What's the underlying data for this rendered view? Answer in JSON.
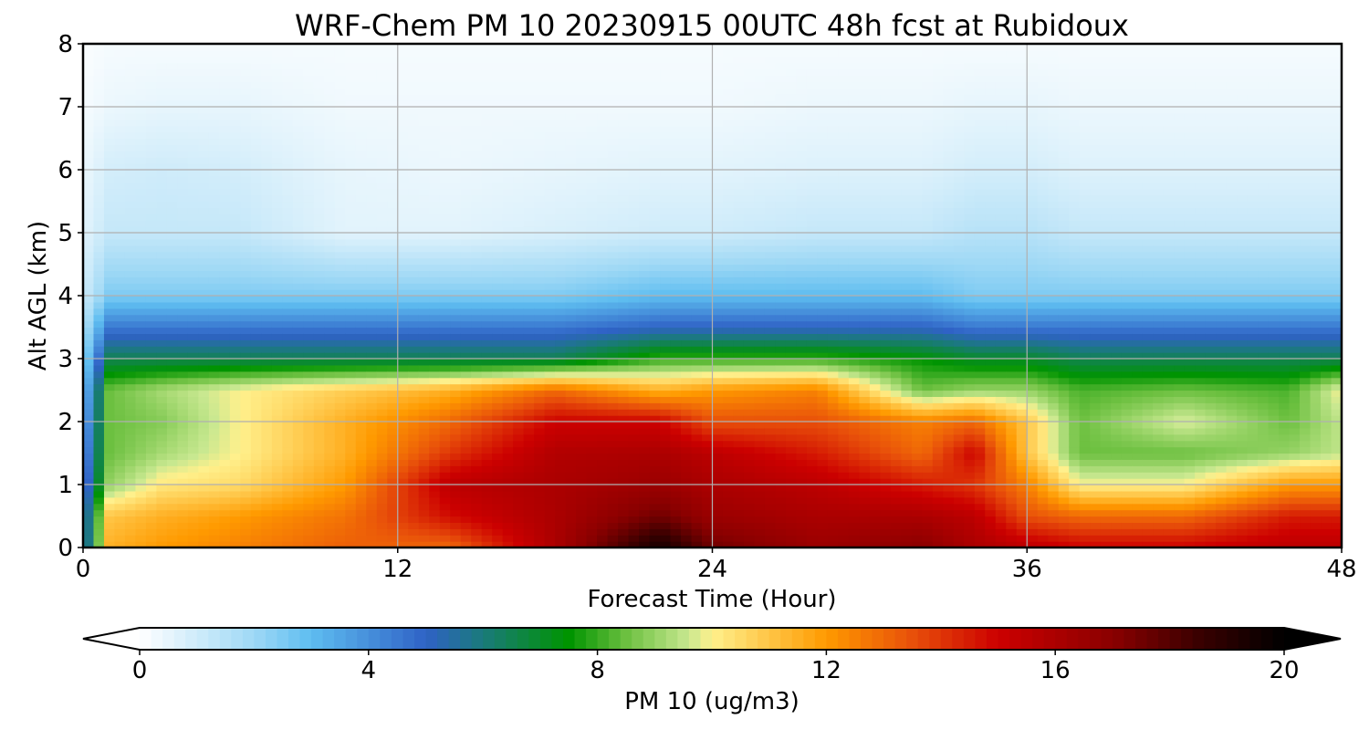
{
  "chart_data": {
    "type": "heatmap",
    "title": "WRF-Chem PM 10  20230915 00UTC 48h fcst at Rubidoux",
    "xlabel": "Forecast Time (Hour)",
    "ylabel": "Alt AGL (km)",
    "xlim": [
      0,
      48
    ],
    "ylim": [
      0,
      8
    ],
    "x_ticks": [
      0,
      12,
      24,
      36,
      48
    ],
    "y_ticks": [
      0,
      1,
      2,
      3,
      4,
      5,
      6,
      7,
      8
    ],
    "grid": true,
    "colorbar": {
      "label": "PM 10  (ug/m3)",
      "min": 0,
      "max": 20,
      "ticks": [
        0,
        4,
        8,
        12,
        16,
        20
      ],
      "extend": "both",
      "colors": [
        {
          "v": 0,
          "c": "#ffffff"
        },
        {
          "v": 2,
          "c": "#9ed8f5"
        },
        {
          "v": 3,
          "c": "#5ebdf0"
        },
        {
          "v": 5,
          "c": "#2f62c6"
        },
        {
          "v": 6,
          "c": "#1a7a7a"
        },
        {
          "v": 7.5,
          "c": "#009400"
        },
        {
          "v": 8.5,
          "c": "#6cc040"
        },
        {
          "v": 9.6,
          "c": "#c8e890"
        },
        {
          "v": 10,
          "c": "#fff08c"
        },
        {
          "v": 12,
          "c": "#ff9a00"
        },
        {
          "v": 13.5,
          "c": "#e8500a"
        },
        {
          "v": 15,
          "c": "#cc0000"
        },
        {
          "v": 17,
          "c": "#8a0000"
        },
        {
          "v": 18.5,
          "c": "#3a0000"
        },
        {
          "v": 20,
          "c": "#000000"
        }
      ]
    },
    "profiles": [
      {
        "x": 0,
        "z": [
          0,
          0.5,
          1,
          1.5,
          2,
          2.5,
          3,
          3.5,
          4,
          5,
          6,
          7,
          8
        ],
        "v": [
          4.5,
          4.5,
          4,
          3.5,
          3,
          2.5,
          2,
          1.5,
          1,
          0.6,
          0.4,
          0.2,
          0.1
        ]
      },
      {
        "x": 1,
        "z": [
          0,
          0.5,
          1,
          1.5,
          2,
          2.5,
          3,
          3.5,
          4,
          5,
          6,
          7,
          8
        ],
        "v": [
          11.5,
          11,
          9,
          8.5,
          8.5,
          8.5,
          6.5,
          4.5,
          2.5,
          1.2,
          0.9,
          0.4,
          0.2
        ]
      },
      {
        "x": 3,
        "z": [
          0,
          0.5,
          1,
          1.5,
          2,
          2.5,
          3,
          3.5,
          4,
          5,
          6,
          7,
          8
        ],
        "v": [
          12,
          11.5,
          10.2,
          9.2,
          8.8,
          9.2,
          6.5,
          4.5,
          2.5,
          1.2,
          1,
          0.5,
          0.2
        ]
      },
      {
        "x": 6,
        "z": [
          0,
          0.5,
          1,
          1.5,
          2,
          2.5,
          3,
          3.5,
          4,
          5,
          6,
          7,
          8
        ],
        "v": [
          12.5,
          12,
          10.5,
          10,
          10,
          10,
          6.5,
          4.5,
          2.5,
          1.2,
          0.9,
          0.5,
          0.2
        ]
      },
      {
        "x": 10,
        "z": [
          0,
          0.5,
          1,
          1.5,
          2,
          2.5,
          3,
          3.5,
          4,
          5,
          6,
          7,
          8
        ],
        "v": [
          13.2,
          12.8,
          12,
          11.5,
          11.5,
          10.8,
          6.5,
          4.5,
          2.5,
          0.6,
          0.5,
          0.3,
          0.2
        ]
      },
      {
        "x": 14,
        "z": [
          0,
          0.5,
          1,
          1.5,
          2,
          2.5,
          3,
          3.5,
          4,
          5,
          6,
          7,
          8
        ],
        "v": [
          13,
          14.8,
          15.5,
          14,
          13,
          11.5,
          6.5,
          4.5,
          2.5,
          0.6,
          0.4,
          0.3,
          0.2
        ]
      },
      {
        "x": 18,
        "z": [
          0,
          0.5,
          1,
          1.5,
          2,
          2.5,
          3,
          3.5,
          4,
          5,
          6,
          7,
          8
        ],
        "v": [
          16,
          16,
          16,
          15.8,
          15,
          13,
          6.5,
          4.5,
          2.5,
          0.8,
          0.5,
          0.3,
          0.2
        ]
      },
      {
        "x": 22,
        "z": [
          0,
          0.5,
          1,
          1.5,
          2,
          2.5,
          3,
          3.5,
          4,
          5,
          6,
          7,
          8
        ],
        "v": [
          19.5,
          17.5,
          16.5,
          16,
          15,
          11.5,
          8,
          5,
          3,
          1,
          0.6,
          0.3,
          0.2
        ]
      },
      {
        "x": 24,
        "z": [
          0,
          0.5,
          1,
          1.5,
          2,
          2.5,
          3,
          3.5,
          4,
          5,
          6,
          7,
          8
        ],
        "v": [
          17.5,
          16.5,
          16,
          15.5,
          13.5,
          12,
          8,
          5,
          3,
          1,
          0.6,
          0.3,
          0.2
        ]
      },
      {
        "x": 28,
        "z": [
          0,
          0.5,
          1,
          1.5,
          2,
          2.5,
          3,
          3.5,
          4,
          5,
          6,
          7,
          8
        ],
        "v": [
          16.5,
          16,
          15.5,
          14.5,
          13.5,
          12.5,
          8,
          5,
          3,
          1.2,
          0.7,
          0.4,
          0.2
        ]
      },
      {
        "x": 32,
        "z": [
          0,
          0.5,
          1,
          1.5,
          2,
          2.5,
          3,
          3.5,
          4,
          5,
          6,
          7,
          8
        ],
        "v": [
          17,
          16,
          14.5,
          13,
          12.5,
          8.5,
          7.5,
          5,
          3,
          1.2,
          0.7,
          0.4,
          0.2
        ]
      },
      {
        "x": 34,
        "z": [
          0,
          0.5,
          1,
          1.5,
          2,
          2.5,
          3,
          3.5,
          4,
          5,
          6,
          7,
          8
        ],
        "v": [
          16,
          15.5,
          14,
          15,
          13,
          9,
          7,
          4.5,
          2.5,
          1.5,
          0.9,
          0.5,
          0.2
        ]
      },
      {
        "x": 36,
        "z": [
          0,
          0.5,
          1,
          1.5,
          2,
          2.5,
          3,
          3.5,
          4,
          5,
          6,
          7,
          8
        ],
        "v": [
          15.5,
          13.5,
          12.5,
          11,
          11,
          9,
          7,
          4.5,
          2.5,
          1.5,
          0.9,
          0.5,
          0.2
        ]
      },
      {
        "x": 38,
        "z": [
          0,
          0.5,
          1,
          1.5,
          2,
          2.5,
          3,
          3.5,
          4,
          5,
          6,
          7,
          8
        ],
        "v": [
          15,
          13,
          10,
          8.5,
          8.5,
          8.2,
          6.5,
          4.5,
          2.5,
          1.2,
          0.7,
          0.4,
          0.2
        ]
      },
      {
        "x": 42,
        "z": [
          0,
          0.5,
          1,
          1.5,
          2,
          2.5,
          3,
          3.5,
          4,
          5,
          6,
          7,
          8
        ],
        "v": [
          15,
          13,
          10,
          8.5,
          9.8,
          8.5,
          6.5,
          4.5,
          2.5,
          1.2,
          0.7,
          0.4,
          0.2
        ]
      },
      {
        "x": 46,
        "z": [
          0,
          0.5,
          1,
          1.5,
          2,
          2.5,
          3,
          3.5,
          4,
          5,
          6,
          7,
          8
        ],
        "v": [
          15.5,
          14.5,
          12,
          9,
          8.5,
          8.2,
          6.5,
          4.5,
          2.5,
          1.2,
          0.7,
          0.4,
          0.2
        ]
      },
      {
        "x": 48,
        "z": [
          0,
          0.5,
          1,
          1.5,
          2,
          2.5,
          3,
          3.5,
          4,
          5,
          6,
          7,
          8
        ],
        "v": [
          15.5,
          14.5,
          12,
          9.5,
          9.5,
          10,
          6.5,
          4.5,
          2.5,
          1.2,
          0.7,
          0.4,
          0.2
        ]
      }
    ]
  }
}
